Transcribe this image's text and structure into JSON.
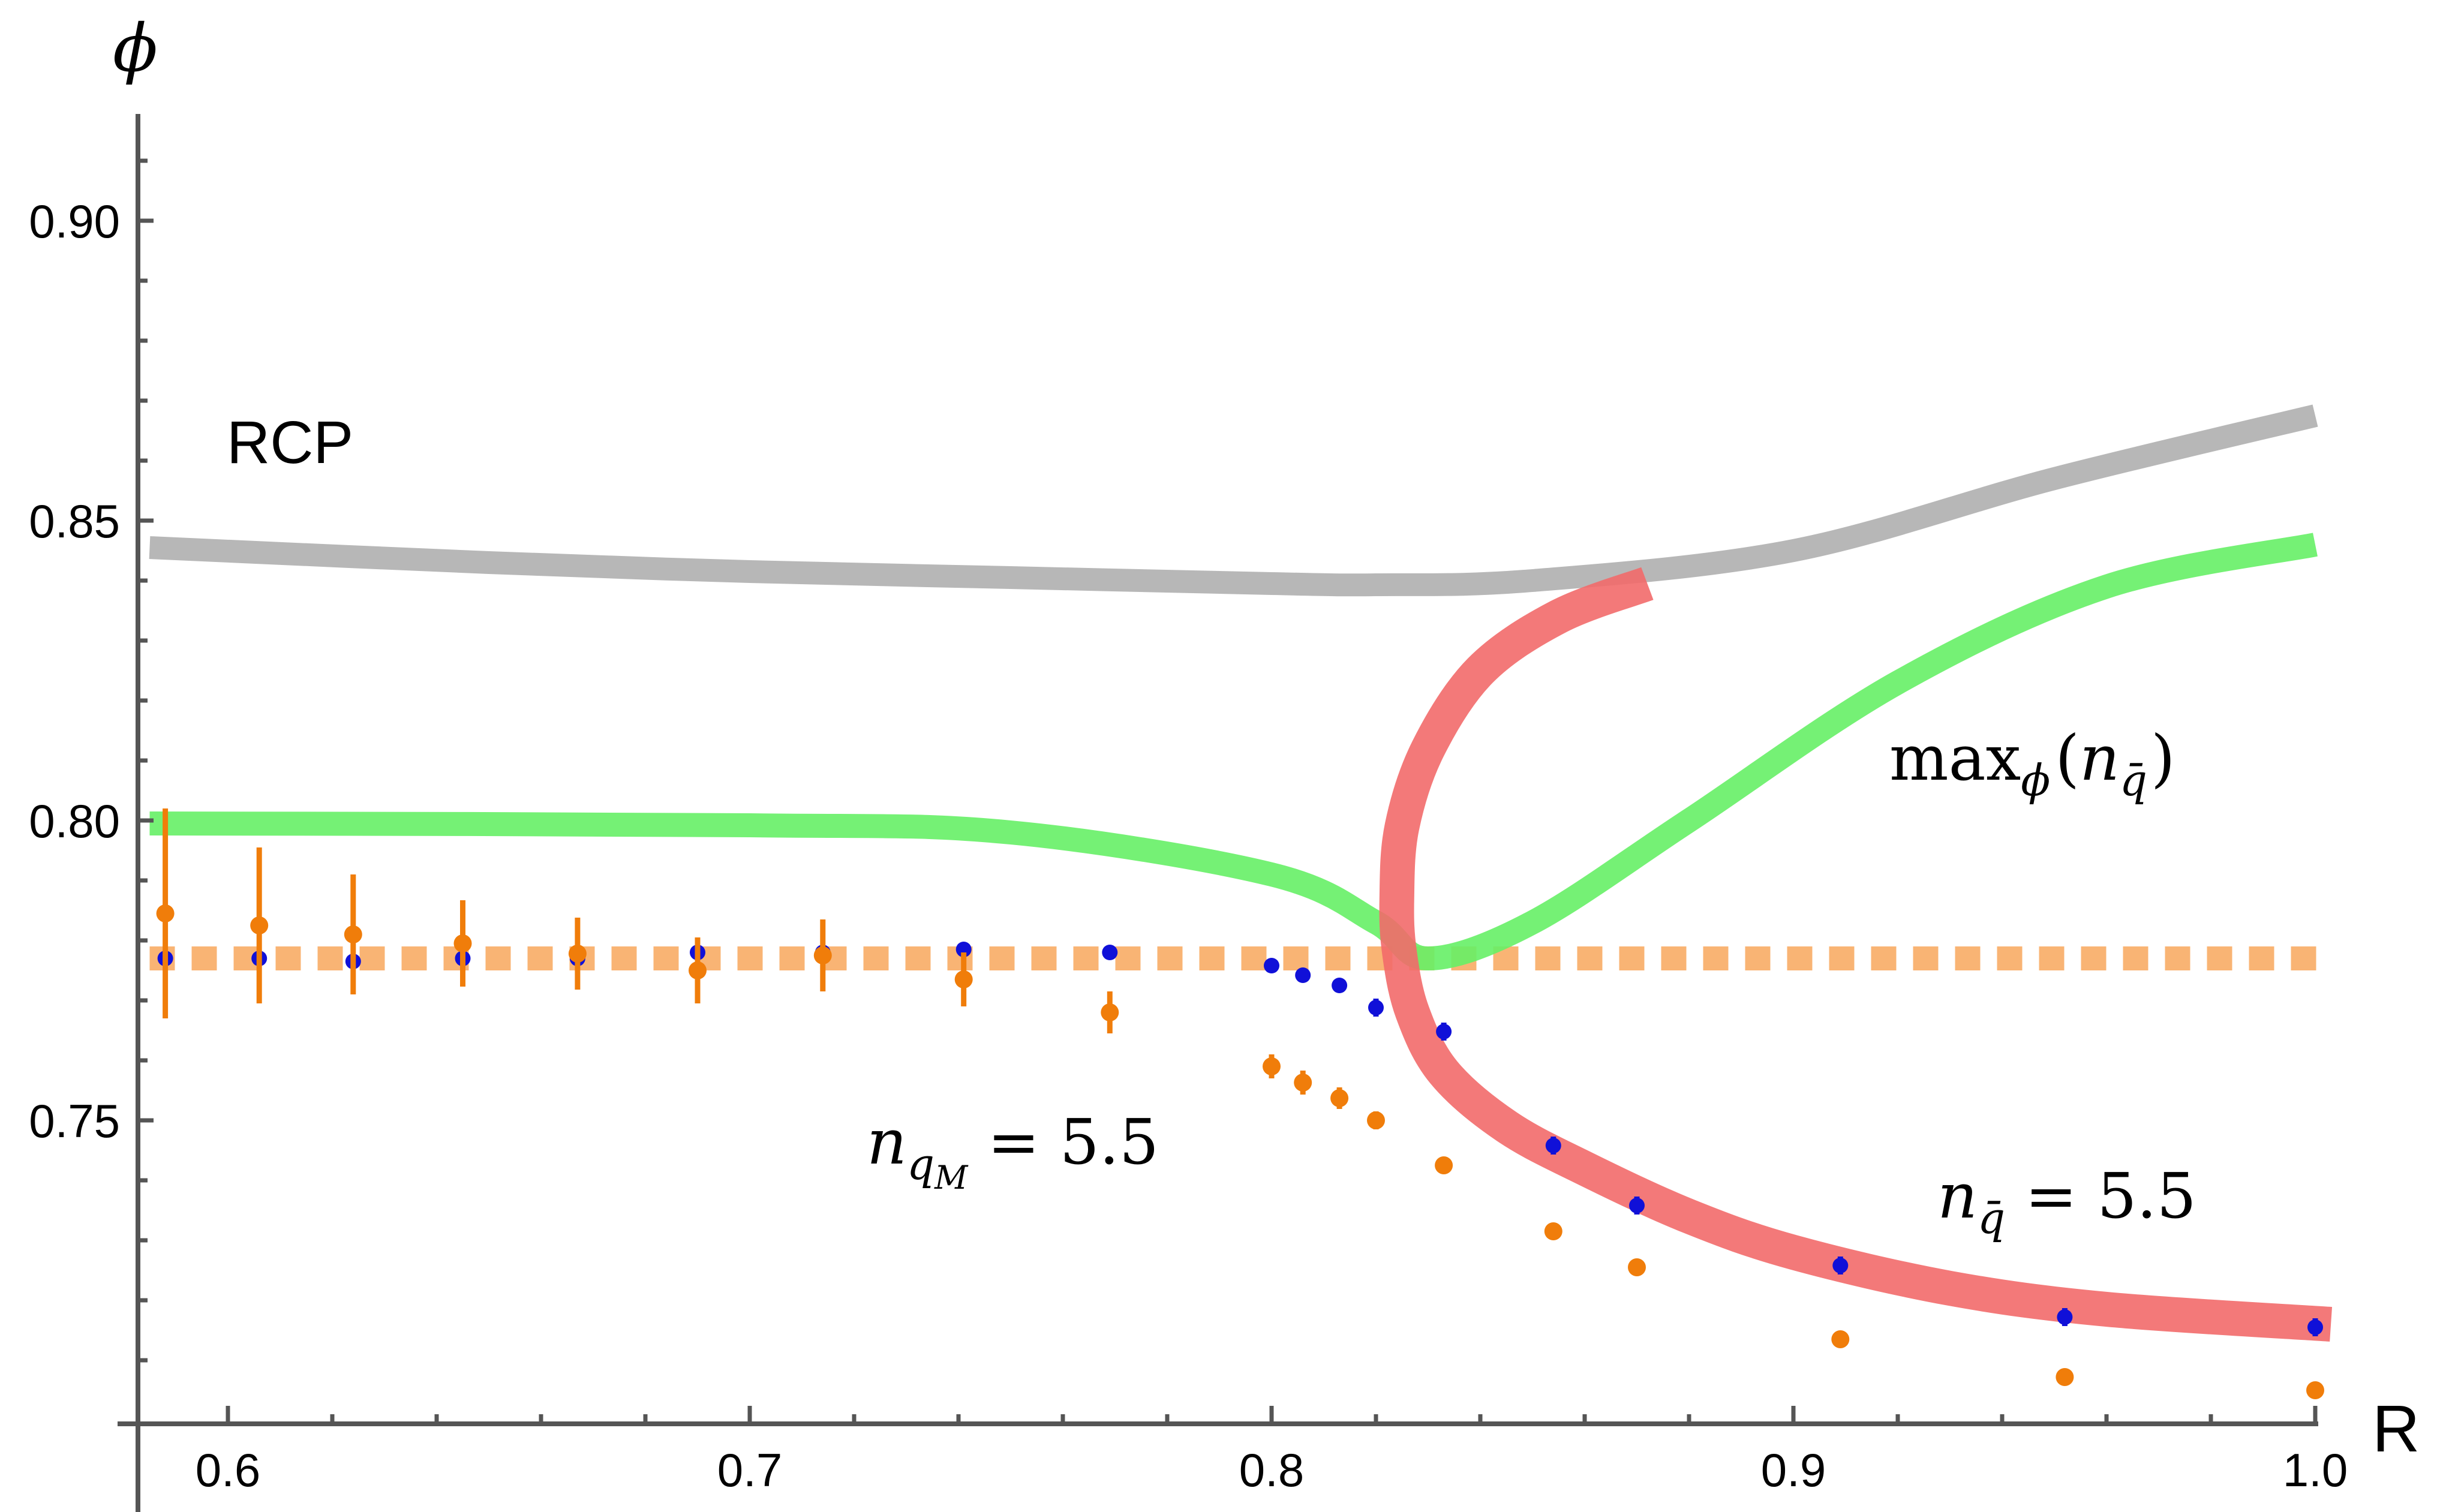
{
  "chart_data": {
    "type": "line",
    "xlabel": "R",
    "ylabel": "ϕ",
    "xlim": [
      0.583,
      1.01
    ],
    "ylim": [
      0.701,
      0.911
    ],
    "x_ticks": [
      "0.6",
      "0.7",
      "0.8",
      "0.9",
      "1.0"
    ],
    "y_ticks": [
      "0.75",
      "0.80",
      "0.85",
      "0.90"
    ],
    "colors": {
      "rcp": "#b7b7b7",
      "max_phi": "#66f066",
      "n_qbar": "#f26a6a",
      "n_qM": "#f9b474",
      "blue_points": "#1010d8",
      "orange_points": "#f07d0a",
      "axis": "#555555"
    },
    "series": [
      {
        "name": "RCP",
        "x": [
          0.585,
          0.65,
          0.7,
          0.75,
          0.8,
          0.82,
          0.85,
          0.9,
          0.95,
          1.0
        ],
        "y": [
          0.8455,
          0.843,
          0.8415,
          0.8405,
          0.8395,
          0.8393,
          0.84,
          0.845,
          0.857,
          0.8675
        ]
      },
      {
        "name": "max_ϕ(n_q̄)",
        "x": [
          0.585,
          0.7,
          0.75,
          0.8,
          0.82,
          0.83,
          0.85,
          0.88,
          0.92,
          0.96,
          1.0
        ],
        "y": [
          0.7995,
          0.7992,
          0.798,
          0.791,
          0.783,
          0.777,
          0.783,
          0.8,
          0.823,
          0.839,
          0.846
        ]
      },
      {
        "name": "n_q̄ = 5.5",
        "points": [
          [
            0.872,
            0.8395
          ],
          [
            0.855,
            0.834
          ],
          [
            0.84,
            0.825
          ],
          [
            0.83,
            0.812
          ],
          [
            0.825,
            0.799
          ],
          [
            0.824,
            0.787
          ],
          [
            0.8245,
            0.778
          ],
          [
            0.827,
            0.768
          ],
          [
            0.833,
            0.758
          ],
          [
            0.845,
            0.749
          ],
          [
            0.86,
            0.742
          ],
          [
            0.88,
            0.734
          ],
          [
            0.9,
            0.728
          ],
          [
            0.93,
            0.722
          ],
          [
            0.96,
            0.7185
          ],
          [
            1.003,
            0.716
          ]
        ]
      },
      {
        "name": "n_qM = 5.5",
        "x": [
          0.585,
          1.003
        ],
        "y": [
          0.777,
          0.777
        ]
      },
      {
        "name": "blue points",
        "points": [
          {
            "x": 0.588,
            "y": 0.777,
            "err": 0.0007
          },
          {
            "x": 0.606,
            "y": 0.777,
            "err": 0.0007
          },
          {
            "x": 0.624,
            "y": 0.7765,
            "err": 0.0007
          },
          {
            "x": 0.645,
            "y": 0.777,
            "err": 0.0007
          },
          {
            "x": 0.667,
            "y": 0.777,
            "err": 0.0007
          },
          {
            "x": 0.69,
            "y": 0.778,
            "err": 0.0007
          },
          {
            "x": 0.714,
            "y": 0.778,
            "err": 0.0007
          },
          {
            "x": 0.741,
            "y": 0.7785,
            "err": 0.0009
          },
          {
            "x": 0.769,
            "y": 0.778,
            "err": 0.0012
          },
          {
            "x": 0.8,
            "y": 0.7758,
            "err": 0.0012
          },
          {
            "x": 0.806,
            "y": 0.7742,
            "err": 0.0012
          },
          {
            "x": 0.813,
            "y": 0.7725,
            "err": 0.0012
          },
          {
            "x": 0.82,
            "y": 0.7688,
            "err": 0.0015
          },
          {
            "x": 0.833,
            "y": 0.7648,
            "err": 0.0015
          },
          {
            "x": 0.854,
            "y": 0.7458,
            "err": 0.0015
          },
          {
            "x": 0.87,
            "y": 0.7358,
            "err": 0.0015
          },
          {
            "x": 0.909,
            "y": 0.7258,
            "err": 0.0015
          },
          {
            "x": 0.952,
            "y": 0.7172,
            "err": 0.0015
          },
          {
            "x": 1.0,
            "y": 0.7155,
            "err": 0.0015
          }
        ]
      },
      {
        "name": "orange points",
        "points": [
          {
            "x": 0.588,
            "y": 0.7845,
            "err": 0.0175
          },
          {
            "x": 0.606,
            "y": 0.7825,
            "err": 0.013
          },
          {
            "x": 0.624,
            "y": 0.781,
            "err": 0.01
          },
          {
            "x": 0.645,
            "y": 0.7795,
            "err": 0.0072
          },
          {
            "x": 0.667,
            "y": 0.7778,
            "err": 0.006
          },
          {
            "x": 0.69,
            "y": 0.775,
            "err": 0.0055
          },
          {
            "x": 0.714,
            "y": 0.7775,
            "err": 0.006
          },
          {
            "x": 0.741,
            "y": 0.7735,
            "err": 0.0045
          },
          {
            "x": 0.769,
            "y": 0.768,
            "err": 0.0035
          },
          {
            "x": 0.8,
            "y": 0.759,
            "err": 0.002
          },
          {
            "x": 0.806,
            "y": 0.7563,
            "err": 0.002
          },
          {
            "x": 0.813,
            "y": 0.7537,
            "err": 0.0018
          },
          {
            "x": 0.82,
            "y": 0.75,
            "err": 0.0015
          },
          {
            "x": 0.833,
            "y": 0.7425,
            "err": 0
          },
          {
            "x": 0.854,
            "y": 0.7315,
            "err": 0
          },
          {
            "x": 0.87,
            "y": 0.7255,
            "err": 0
          },
          {
            "x": 0.909,
            "y": 0.7135,
            "err": 0
          },
          {
            "x": 0.952,
            "y": 0.7072,
            "err": 0
          },
          {
            "x": 1.0,
            "y": 0.705,
            "err": 0
          }
        ]
      }
    ],
    "annotations": {
      "rcp_label": "RCP",
      "max_phi_label": {
        "prefix": "max",
        "sub": "ϕ",
        "open": "(",
        "var": "n",
        "var_sub": "q̄",
        "close": ")"
      },
      "n_qbar_label": {
        "var": "n",
        "var_sub": "q̄",
        "rest": " = 5.5"
      },
      "n_qM_label": {
        "var": "n",
        "var_sub": "q",
        "var_subsub": "M",
        "rest": " = 5.5"
      }
    }
  }
}
